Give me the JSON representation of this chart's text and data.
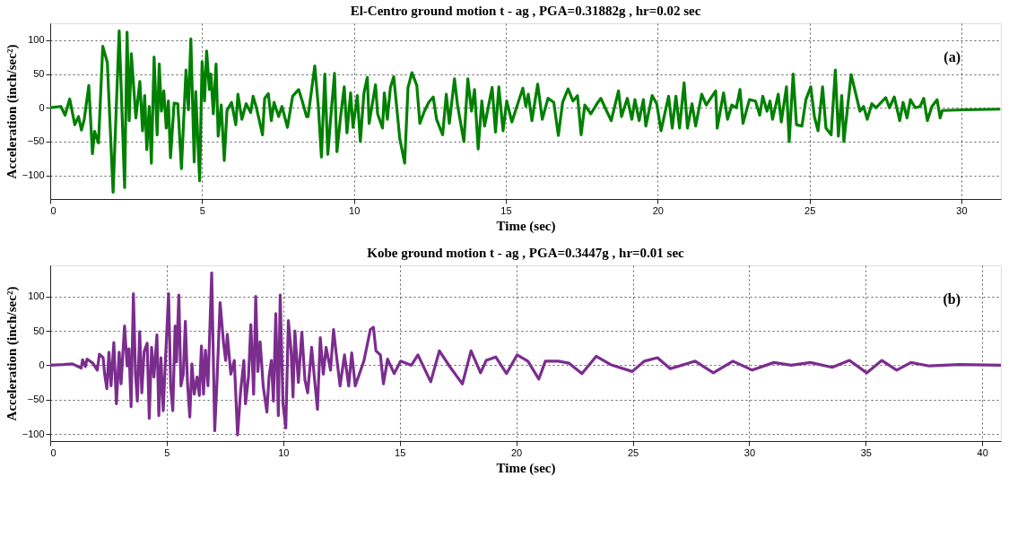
{
  "chart_data": [
    {
      "type": "line",
      "title": "El-Centro ground motion t - ag ,  PGA=0.31882g ,  hr=0.02 sec",
      "xlabel": "Time (sec)",
      "ylabel": "Acceleration (inch/sec²)",
      "annotations": [
        "(a)"
      ],
      "xlim": [
        0,
        31.3
      ],
      "ylim": [
        -135,
        125
      ],
      "xticks": [
        0,
        5,
        10,
        15,
        20,
        25,
        30
      ],
      "yticks": [
        -100,
        -50,
        0,
        50,
        100
      ],
      "grid": true,
      "line_style": "solid",
      "marker": "none",
      "series": [
        {
          "color": "#008000",
          "x": [
            0,
            0.35,
            0.49,
            0.64,
            0.81,
            0.93,
            1.03,
            1.12,
            1.27,
            1.39,
            1.46,
            1.59,
            1.73,
            1.88,
            2.07,
            2.27,
            2.45,
            2.53,
            2.6,
            2.67,
            2.82,
            2.95,
            3.04,
            3.11,
            3.18,
            3.26,
            3.33,
            3.42,
            3.52,
            3.59,
            3.66,
            3.74,
            3.82,
            3.89,
            3.96,
            4.08,
            4.2,
            4.32,
            4.47,
            4.55,
            4.63,
            4.74,
            4.79,
            4.92,
            5.0,
            5.08,
            5.15,
            5.24,
            5.29,
            5.37,
            5.46,
            5.53,
            5.63,
            5.73,
            5.82,
            5.97,
            6.11,
            6.18,
            6.31,
            6.45,
            6.6,
            6.68,
            6.79,
            6.99,
            7.06,
            7.18,
            7.28,
            7.37,
            7.52,
            7.63,
            7.81,
            7.98,
            8.18,
            8.29,
            8.44,
            8.49,
            8.71,
            8.83,
            8.93,
            9.04,
            9.14,
            9.23,
            9.36,
            9.44,
            9.56,
            9.68,
            9.77,
            9.89,
            9.97,
            10.11,
            10.21,
            10.33,
            10.44,
            10.5,
            10.71,
            10.78,
            10.94,
            11.0,
            11.1,
            11.2,
            11.31,
            11.51,
            11.67,
            11.78,
            11.91,
            12.07,
            12.17,
            12.32,
            12.46,
            12.61,
            12.72,
            12.92,
            13.04,
            13.14,
            13.31,
            13.41,
            13.62,
            13.75,
            13.87,
            13.97,
            14.09,
            14.21,
            14.3,
            14.55,
            14.66,
            14.77,
            14.91,
            15.03,
            15.2,
            15.56,
            15.66,
            15.74,
            15.86,
            16.05,
            16.2,
            16.39,
            16.58,
            16.73,
            16.87,
            17.05,
            17.21,
            17.36,
            17.48,
            17.6,
            17.8,
            18.03,
            18.13,
            18.27,
            18.47,
            18.71,
            18.81,
            19.0,
            19.15,
            19.25,
            19.39,
            19.53,
            19.61,
            19.82,
            19.97,
            20.11,
            20.36,
            20.48,
            20.6,
            20.72,
            20.87,
            20.98,
            21.13,
            21.25,
            21.45,
            21.6,
            21.76,
            21.91,
            21.96,
            22.17,
            22.3,
            22.44,
            22.59,
            22.71,
            22.81,
            23.02,
            23.22,
            23.36,
            23.46,
            23.6,
            23.7,
            23.78,
            23.97,
            24.07,
            24.24,
            24.33,
            24.46,
            24.57,
            24.75,
            24.88,
            25.04,
            25.16,
            25.28,
            25.43,
            25.54,
            25.71,
            25.85,
            25.95,
            26.06,
            26.13,
            26.37,
            26.66,
            26.78,
            26.9,
            27.05,
            27.19,
            27.34,
            27.51,
            27.63,
            27.79,
            27.97,
            28.08,
            28.21,
            28.32,
            28.48,
            28.64,
            28.76,
            28.88,
            29.03,
            29.2,
            29.3,
            29.37,
            30.1,
            31.28
          ],
          "values": [
            0,
            2,
            -11,
            13,
            -25,
            -13,
            -33,
            -17,
            33,
            -68,
            -35,
            -52,
            91,
            67,
            -125,
            114,
            -118,
            112,
            -19,
            80,
            -15,
            39,
            -34,
            18,
            -62,
            2,
            -82,
            75,
            -40,
            65,
            -5,
            25,
            -30,
            10,
            -74,
            7,
            6,
            -90,
            56,
            -3,
            102,
            -80,
            24,
            -108,
            68,
            10,
            84,
            27,
            50,
            -9,
            65,
            -42,
            4,
            -78,
            -4,
            8,
            -25,
            20,
            -17,
            6,
            -7,
            17,
            0,
            -40,
            14,
            21,
            -19,
            8,
            -13,
            2,
            -29,
            17,
            27,
            11,
            -13,
            -13,
            62,
            0,
            -73,
            50,
            -69,
            -17,
            51,
            -65,
            -13,
            31,
            -37,
            22,
            -29,
            18,
            -50,
            22,
            45,
            -23,
            34,
            -9,
            -30,
            22,
            -17,
            30,
            46,
            -46,
            -82,
            30,
            52,
            33,
            -23,
            -5,
            8,
            16,
            -17,
            -40,
            20,
            -23,
            43,
            4,
            -50,
            43,
            -5,
            27,
            -61,
            10,
            -27,
            30,
            -36,
            31,
            -34,
            10,
            -21,
            29,
            2,
            20,
            -19,
            35,
            -17,
            14,
            8,
            -41,
            8,
            28,
            10,
            18,
            -40,
            4,
            -9,
            8,
            14,
            0,
            -19,
            25,
            -13,
            14,
            -17,
            12,
            -19,
            12,
            -27,
            18,
            6,
            -34,
            17,
            -30,
            17,
            -30,
            37,
            -30,
            6,
            -27,
            20,
            4,
            15,
            25,
            -30,
            22,
            -17,
            4,
            0,
            27,
            -23,
            12,
            10,
            -11,
            17,
            -5,
            10,
            -17,
            20,
            -21,
            31,
            -50,
            50,
            -25,
            -27,
            12,
            31,
            -13,
            -34,
            31,
            -30,
            -40,
            56,
            -42,
            18,
            -50,
            49,
            -5,
            2,
            -17,
            6,
            0,
            7,
            15,
            0,
            16,
            -19,
            8,
            -15,
            12,
            0,
            2,
            14,
            -19,
            2,
            12,
            -15,
            -4,
            -3,
            -2
          ]
        }
      ]
    },
    {
      "type": "line",
      "title": "Kobe ground motion t - ag ,  PGA=0.3447g ,  hr=0.01 sec",
      "xlabel": "Time (sec)",
      "ylabel": "Acceleration (inch/sec²)",
      "annotations": [
        "(b)"
      ],
      "xlim": [
        0,
        40.8
      ],
      "ylim": [
        -110,
        145
      ],
      "xticks": [
        0,
        5,
        10,
        15,
        20,
        25,
        30,
        35,
        40
      ],
      "yticks": [
        -100,
        -50,
        0,
        50,
        100
      ],
      "grid": true,
      "line_style": "solid",
      "marker": "none",
      "series": [
        {
          "color": "#7b2d8e",
          "x": [
            0,
            0.57,
            0.95,
            1.33,
            1.39,
            1.51,
            1.58,
            1.83,
            2.02,
            2.11,
            2.27,
            2.33,
            2.43,
            2.52,
            2.61,
            2.73,
            2.84,
            2.96,
            3.04,
            3.19,
            3.3,
            3.38,
            3.47,
            3.57,
            3.66,
            3.74,
            3.84,
            3.93,
            4.03,
            4.16,
            4.25,
            4.35,
            4.45,
            4.58,
            4.66,
            4.75,
            4.85,
            4.95,
            5.08,
            5.17,
            5.26,
            5.36,
            5.42,
            5.52,
            5.61,
            5.71,
            5.8,
            5.89,
            5.99,
            6.08,
            6.18,
            6.3,
            6.4,
            6.49,
            6.58,
            6.66,
            6.77,
            6.93,
            7.06,
            7.16,
            7.29,
            7.44,
            7.53,
            7.6,
            7.75,
            7.9,
            8.04,
            8.17,
            8.31,
            8.38,
            8.51,
            8.61,
            8.73,
            8.82,
            8.91,
            9.01,
            9.14,
            9.3,
            9.39,
            9.49,
            9.58,
            9.68,
            9.79,
            9.87,
            9.99,
            10.11,
            10.22,
            10.34,
            10.42,
            10.5,
            10.65,
            10.8,
            10.93,
            11.05,
            11.22,
            11.34,
            11.47,
            11.59,
            11.72,
            11.84,
            12.03,
            12.16,
            12.26,
            12.44,
            12.63,
            12.81,
            12.94,
            13.09,
            13.46,
            13.74,
            13.87,
            13.98,
            14.17,
            14.3,
            14.48,
            14.76,
            15.04,
            15.5,
            15.78,
            16.33,
            16.7,
            17.17,
            17.69,
            18.06,
            18.47,
            18.71,
            19.12,
            19.58,
            20.04,
            20.5,
            20.97,
            21.25,
            21.8,
            22.27,
            22.82,
            23.43,
            24.05,
            24.98,
            25.5,
            26.06,
            26.61,
            27.68,
            28.46,
            29.3,
            30.13,
            31.06,
            31.8,
            32.63,
            33.56,
            34.3,
            35.04,
            35.69,
            36.33,
            36.94,
            37.72,
            39.02,
            40.8
          ],
          "values": [
            0,
            1,
            2,
            -4,
            8,
            -2,
            9,
            3,
            -7,
            16,
            11,
            -11,
            -34,
            19,
            -30,
            33,
            -56,
            19,
            -27,
            57,
            -1,
            24,
            -60,
            104,
            -13,
            -52,
            49,
            -40,
            20,
            32,
            -77,
            26,
            -17,
            44,
            -73,
            11,
            -66,
            11,
            104,
            -30,
            -66,
            57,
            5,
            102,
            -30,
            -13,
            64,
            -25,
            -75,
            2,
            -42,
            -17,
            -44,
            28,
            -42,
            22,
            -30,
            134,
            -95,
            -21,
            91,
            32,
            7,
            45,
            -13,
            7,
            -101,
            -38,
            7,
            -56,
            -17,
            59,
            -42,
            100,
            -9,
            34,
            -30,
            -68,
            -17,
            7,
            -52,
            75,
            -73,
            102,
            -56,
            -91,
            65,
            20,
            -46,
            50,
            -25,
            48,
            -21,
            -40,
            26,
            -19,
            -64,
            40,
            -13,
            26,
            -7,
            52,
            21,
            -30,
            15,
            -30,
            18,
            -30,
            6,
            52,
            55,
            21,
            15,
            -27,
            9,
            -12,
            6,
            0,
            15,
            -24,
            21,
            -3,
            -27,
            21,
            -11,
            7,
            12,
            -12,
            15,
            6,
            -20,
            6,
            6,
            3,
            -12,
            13,
            1,
            -9,
            6,
            11,
            -5,
            6,
            -11,
            6,
            -7,
            4,
            0,
            4,
            -3,
            7,
            -11,
            7,
            -7,
            4,
            -1,
            1,
            0
          ]
        }
      ]
    }
  ]
}
